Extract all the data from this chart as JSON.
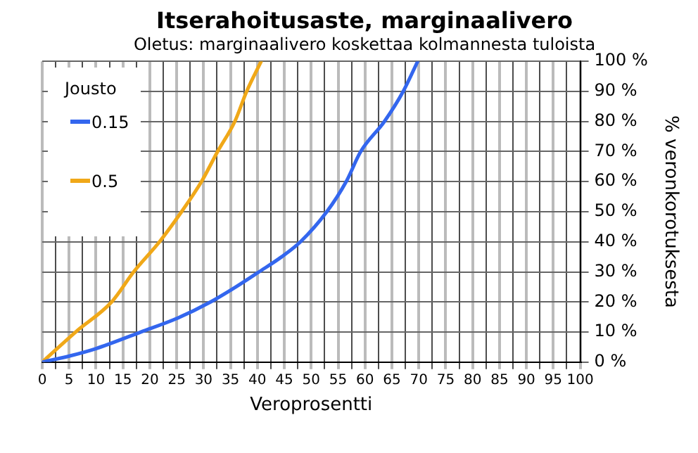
{
  "chart_data": {
    "type": "line",
    "title": "Itserahoitusaste, marginaalivero",
    "subtitle": "Oletus: marginaalivero koskettaa kolmannesta tuloista",
    "xlabel": "Veroprosentti",
    "ylabel": "% veronkorotuksesta",
    "legend_title": "Jousto",
    "legend": "top left",
    "grid": true,
    "marker": "none",
    "xlim": [
      0,
      100
    ],
    "xticks": [
      0,
      {
        "value": 2.5,
        "label": null
      },
      5,
      {
        "value": 7.5,
        "label": null
      },
      10,
      {
        "value": 12.5,
        "label": null
      },
      15,
      {
        "value": 17.5,
        "label": null
      },
      20,
      {
        "value": 22.5,
        "label": null
      },
      25,
      {
        "value": 27.5,
        "label": null
      },
      30,
      {
        "value": 32.5,
        "label": null
      },
      35,
      {
        "value": 37.5,
        "label": null
      },
      40,
      {
        "value": 42.5,
        "label": null
      },
      45,
      {
        "value": 47.5,
        "label": null
      },
      50,
      {
        "value": 52.5,
        "label": null
      },
      55,
      {
        "value": 57.5,
        "label": null
      },
      60,
      {
        "value": 62.5,
        "label": null
      },
      65,
      {
        "value": 67.5,
        "label": null
      },
      70,
      {
        "value": 72.5,
        "label": null
      },
      75,
      {
        "value": 77.5,
        "label": null
      },
      80,
      {
        "value": 82.5,
        "label": null
      },
      85,
      {
        "value": 87.5,
        "label": null
      },
      90,
      {
        "value": 92.5,
        "label": null
      },
      95,
      {
        "value": 97.5,
        "label": null
      },
      100
    ],
    "ylim": [
      0,
      100
    ],
    "yticks": [
      {
        "value": 0,
        "label": "0 %"
      },
      {
        "value": 10,
        "label": "10 %"
      },
      {
        "value": 20,
        "label": "20 %"
      },
      {
        "value": 30,
        "label": "30 %"
      },
      {
        "value": 40,
        "label": "40 %"
      },
      {
        "value": 50,
        "label": "50 %"
      },
      {
        "value": 60,
        "label": "60 %"
      },
      {
        "value": 70,
        "label": "70 %"
      },
      {
        "value": 80,
        "label": "80 %"
      },
      {
        "value": 90,
        "label": "90 %"
      },
      {
        "value": 100,
        "label": "100 %"
      }
    ],
    "series": [
      {
        "name": "0.15",
        "color": "#3366ee",
        "x": [
          0,
          5,
          10,
          18.3,
          25,
          31.3,
          36,
          40.3,
          44.5,
          48,
          52.9,
          56.5,
          59.2,
          63.6,
          67.1,
          69.8
        ],
        "values": [
          0,
          2,
          4.5,
          10,
          14.5,
          20,
          25,
          30,
          35,
          40,
          50,
          60,
          70,
          80,
          90,
          100
        ]
      },
      {
        "name": "0.5",
        "color": "#f0a818",
        "x": [
          0,
          6.2,
          12.9,
          17,
          21.8,
          25.9,
          29.6,
          32.6,
          35.8,
          38,
          40.7
        ],
        "values": [
          0,
          10,
          20,
          30,
          40,
          50,
          60,
          70,
          80,
          90,
          100
        ]
      }
    ]
  }
}
